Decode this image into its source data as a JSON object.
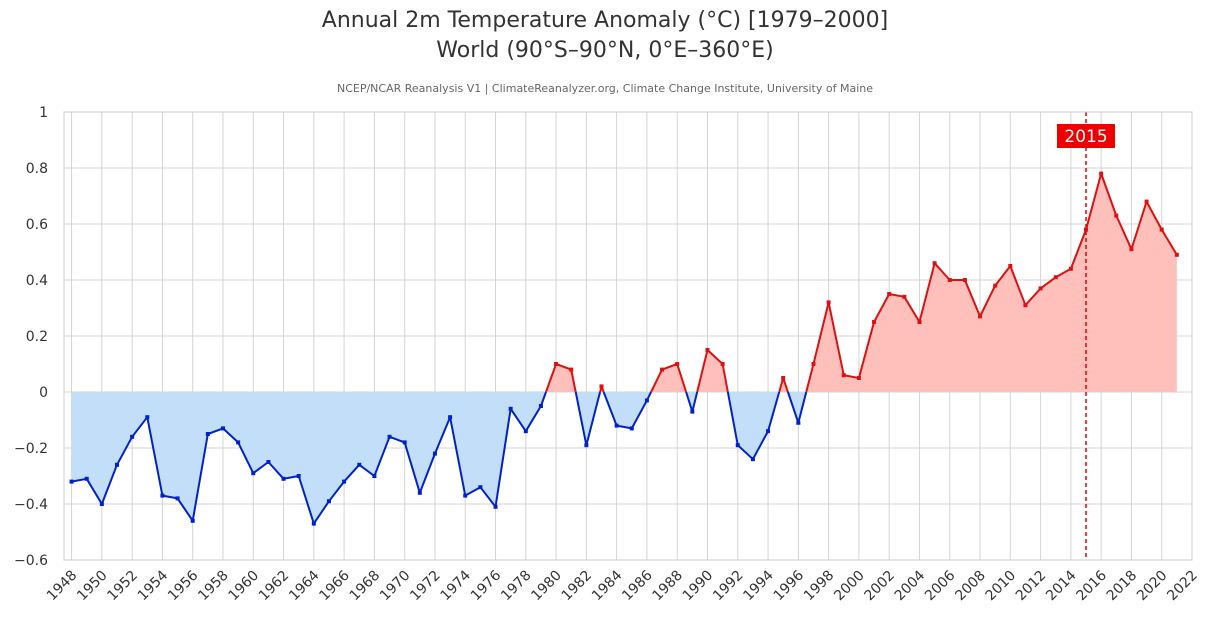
{
  "title_line1": "Annual 2m Temperature Anomaly (°C) [1979–2000]",
  "title_line2": "World (90°S–90°N, 0°E–360°E)",
  "subtitle": "NCEP/NCAR Reanalysis V1 | ClimateReanalyzer.org, Climate Change Institute, University of Maine",
  "colors": {
    "negative_line": "#0022cc",
    "negative_fill": "#c3def8",
    "positive_line": "#dd1111",
    "positive_fill": "#ffc0bc",
    "marker_line": "#ee0000",
    "marker_label_bg": "#ee0000",
    "grid": "#d4d4d4"
  },
  "chart_data": {
    "type": "area",
    "title": "Annual 2m Temperature Anomaly (°C) [1979–2000]",
    "subtitle": "World (90°S–90°N, 0°E–360°E)",
    "xlabel": "",
    "ylabel": "",
    "ylim": [
      -0.6,
      1
    ],
    "xlim": [
      1947.5,
      2022
    ],
    "grid": true,
    "yticks": [
      "1",
      "0.8",
      "0.6",
      "0.4",
      "0.2",
      "0",
      "−0.2",
      "−0.4",
      "−0.6"
    ],
    "ytick_values": [
      1,
      0.8,
      0.6,
      0.4,
      0.2,
      0,
      -0.2,
      -0.4,
      -0.6
    ],
    "xticks": [
      "1948",
      "1950",
      "1952",
      "1954",
      "1956",
      "1958",
      "1960",
      "1962",
      "1964",
      "1966",
      "1968",
      "1970",
      "1972",
      "1974",
      "1976",
      "1978",
      "1980",
      "1982",
      "1984",
      "1986",
      "1988",
      "1990",
      "1992",
      "1994",
      "1996",
      "1998",
      "2000",
      "2002",
      "2004",
      "2006",
      "2008",
      "2010",
      "2012",
      "2014",
      "2016",
      "2018",
      "2020",
      "2022"
    ],
    "x": [
      1948,
      1949,
      1950,
      1951,
      1952,
      1953,
      1954,
      1955,
      1956,
      1957,
      1958,
      1959,
      1960,
      1961,
      1962,
      1963,
      1964,
      1965,
      1966,
      1967,
      1968,
      1969,
      1970,
      1971,
      1972,
      1973,
      1974,
      1975,
      1976,
      1977,
      1978,
      1979,
      1980,
      1981,
      1982,
      1983,
      1984,
      1985,
      1986,
      1987,
      1988,
      1989,
      1990,
      1991,
      1992,
      1993,
      1994,
      1995,
      1996,
      1997,
      1998,
      1999,
      2000,
      2001,
      2002,
      2003,
      2004,
      2005,
      2006,
      2007,
      2008,
      2009,
      2010,
      2011,
      2012,
      2013,
      2014,
      2015,
      2016,
      2017,
      2018,
      2019,
      2020,
      2021
    ],
    "y": [
      -0.32,
      -0.31,
      -0.4,
      -0.26,
      -0.16,
      -0.09,
      -0.37,
      -0.38,
      -0.46,
      -0.15,
      -0.13,
      -0.18,
      -0.29,
      -0.25,
      -0.31,
      -0.3,
      -0.47,
      -0.39,
      -0.32,
      -0.26,
      -0.3,
      -0.16,
      -0.18,
      -0.36,
      -0.22,
      -0.09,
      -0.37,
      -0.34,
      -0.41,
      -0.06,
      -0.14,
      -0.05,
      0.1,
      0.08,
      -0.19,
      0.02,
      -0.12,
      -0.13,
      -0.03,
      0.08,
      0.1,
      -0.07,
      0.15,
      0.1,
      -0.19,
      -0.24,
      -0.14,
      0.05,
      -0.11,
      0.1,
      0.32,
      0.06,
      0.05,
      0.25,
      0.35,
      0.34,
      0.25,
      0.46,
      0.4,
      0.4,
      0.27,
      0.38,
      0.45,
      0.31,
      0.37,
      0.41,
      0.44,
      0.58,
      0.78,
      0.63,
      0.51,
      0.68,
      0.58,
      0.49
    ],
    "marker": {
      "x": 2015,
      "label": "2015"
    }
  }
}
